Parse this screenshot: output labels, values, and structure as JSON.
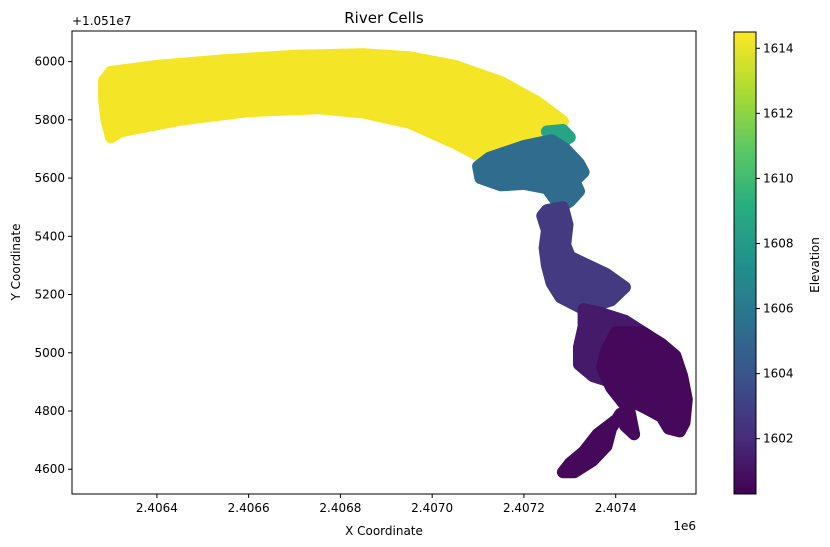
{
  "chart_data": {
    "type": "scatter",
    "title": "River Cells",
    "xlabel": "X Coordinate",
    "ylabel": "Y Coordinate",
    "x_offset_label": "1e6",
    "y_offset_label": "+1.051e7",
    "xlim": [
      2406215,
      2407575
    ],
    "ylim": [
      4515,
      6105
    ],
    "x_ticks": [
      2406400,
      2406600,
      2406800,
      2407000,
      2407200,
      2407400
    ],
    "x_tick_labels": [
      "2.4064",
      "2.4066",
      "2.4068",
      "2.4070",
      "2.4072",
      "2.4074"
    ],
    "y_ticks": [
      4600,
      4800,
      5000,
      5200,
      5400,
      5600,
      5800,
      6000
    ],
    "y_tick_labels": [
      "4600",
      "4800",
      "5000",
      "5200",
      "5400",
      "5600",
      "5800",
      "6000"
    ],
    "grid": false,
    "colormap": "viridis",
    "colorbar": {
      "label": "Elevation",
      "range": [
        1600.3,
        1614.5
      ],
      "ticks": [
        1602,
        1604,
        1606,
        1608,
        1610,
        1612,
        1614
      ],
      "tick_labels": [
        "1602",
        "1604",
        "1606",
        "1608",
        "1610",
        "1612",
        "1614"
      ]
    },
    "regions": [
      {
        "elevation": 1614.3,
        "outline": [
          [
            2406285,
            5935
          ],
          [
            2406300,
            5965
          ],
          [
            2406400,
            5985
          ],
          [
            2406550,
            6005
          ],
          [
            2406700,
            6020
          ],
          [
            2406850,
            6025
          ],
          [
            2406950,
            6015
          ],
          [
            2407050,
            5985
          ],
          [
            2407150,
            5930
          ],
          [
            2407230,
            5860
          ],
          [
            2407285,
            5795
          ],
          [
            2407270,
            5760
          ],
          [
            2407200,
            5730
          ],
          [
            2407150,
            5705
          ],
          [
            2407110,
            5670
          ],
          [
            2407050,
            5720
          ],
          [
            2406950,
            5790
          ],
          [
            2406850,
            5825
          ],
          [
            2406750,
            5840
          ],
          [
            2406600,
            5830
          ],
          [
            2406450,
            5800
          ],
          [
            2406320,
            5760
          ],
          [
            2406300,
            5740
          ],
          [
            2406290,
            5800
          ],
          [
            2406285,
            5870
          ]
        ]
      },
      {
        "elevation": 1608.6,
        "outline": [
          [
            2407250,
            5760
          ],
          [
            2407285,
            5765
          ],
          [
            2407300,
            5740
          ],
          [
            2407280,
            5720
          ]
        ]
      },
      {
        "elevation": 1605.3,
        "outline": [
          [
            2407100,
            5640
          ],
          [
            2407125,
            5670
          ],
          [
            2407200,
            5710
          ],
          [
            2407260,
            5730
          ],
          [
            2407290,
            5700
          ],
          [
            2407320,
            5650
          ],
          [
            2407330,
            5620
          ],
          [
            2407310,
            5590
          ],
          [
            2407320,
            5555
          ],
          [
            2407300,
            5520
          ],
          [
            2407280,
            5500
          ],
          [
            2407250,
            5565
          ],
          [
            2407200,
            5580
          ],
          [
            2407150,
            5575
          ],
          [
            2407105,
            5600
          ]
        ]
      },
      {
        "elevation": 1602.7,
        "outline": [
          [
            2407240,
            5470
          ],
          [
            2407250,
            5490
          ],
          [
            2407285,
            5500
          ],
          [
            2407295,
            5440
          ],
          [
            2407290,
            5370
          ],
          [
            2407300,
            5330
          ],
          [
            2407340,
            5300
          ],
          [
            2407380,
            5270
          ],
          [
            2407420,
            5225
          ],
          [
            2407390,
            5180
          ],
          [
            2407330,
            5150
          ],
          [
            2407280,
            5190
          ],
          [
            2407260,
            5240
          ],
          [
            2407250,
            5300
          ],
          [
            2407245,
            5360
          ],
          [
            2407250,
            5420
          ]
        ]
      },
      {
        "elevation": 1601.3,
        "outline": [
          [
            2407330,
            5150
          ],
          [
            2407360,
            5140
          ],
          [
            2407420,
            5110
          ],
          [
            2407470,
            5060
          ],
          [
            2407515,
            5000
          ],
          [
            2407520,
            4930
          ],
          [
            2407510,
            4860
          ],
          [
            2407500,
            4800
          ],
          [
            2407470,
            4830
          ],
          [
            2407440,
            4860
          ],
          [
            2407390,
            4900
          ],
          [
            2407350,
            4920
          ],
          [
            2407320,
            4960
          ],
          [
            2407320,
            5020
          ],
          [
            2407330,
            5090
          ]
        ]
      },
      {
        "elevation": 1600.6,
        "outline": [
          [
            2407400,
            5070
          ],
          [
            2407460,
            5070
          ],
          [
            2407500,
            5030
          ],
          [
            2407530,
            4990
          ],
          [
            2407545,
            4920
          ],
          [
            2407555,
            4840
          ],
          [
            2407550,
            4760
          ],
          [
            2407540,
            4730
          ],
          [
            2407515,
            4740
          ],
          [
            2407500,
            4780
          ],
          [
            2407465,
            4810
          ],
          [
            2407440,
            4830
          ],
          [
            2407410,
            4780
          ],
          [
            2407360,
            4720
          ],
          [
            2407330,
            4660
          ],
          [
            2407300,
            4620
          ],
          [
            2407285,
            4590
          ],
          [
            2407310,
            4590
          ],
          [
            2407350,
            4630
          ],
          [
            2407380,
            4680
          ],
          [
            2407390,
            4740
          ],
          [
            2407410,
            4790
          ],
          [
            2407420,
            4750
          ],
          [
            2407440,
            4720
          ],
          [
            2407430,
            4800
          ],
          [
            2407390,
            4880
          ],
          [
            2407370,
            4950
          ],
          [
            2407380,
            5010
          ]
        ]
      }
    ]
  }
}
